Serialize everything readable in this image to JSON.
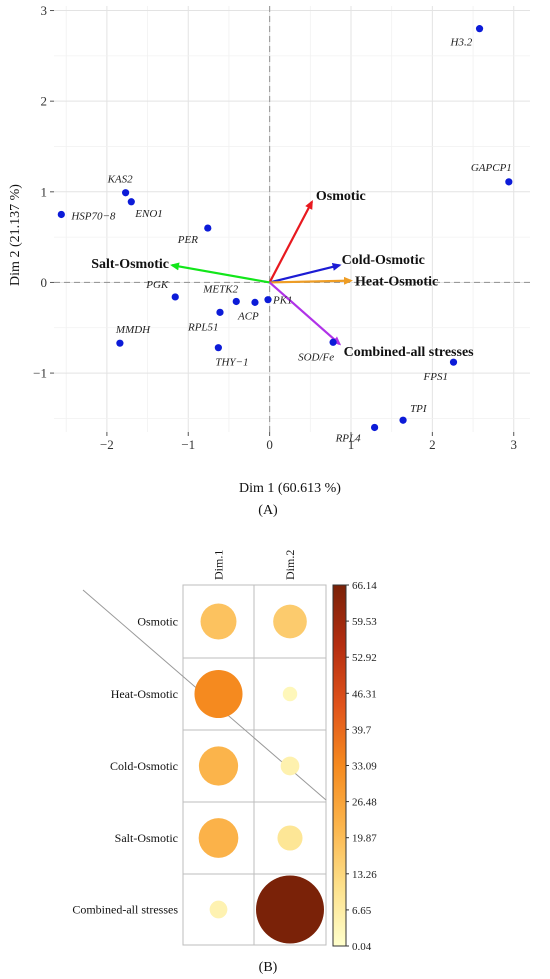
{
  "chart_data": [
    {
      "type": "scatter",
      "panel_label": "(A)",
      "xlabel": "Dim 1 (60.613 %)",
      "ylabel": "Dim 2 (21.137 %)",
      "xlim": [
        -2.65,
        3.2
      ],
      "ylim": [
        -1.65,
        3.05
      ],
      "x_ticks": [
        -2,
        -1,
        0,
        1,
        2,
        3
      ],
      "y_ticks": [
        -1,
        0,
        1,
        2,
        3
      ],
      "grid": true,
      "points": [
        {
          "label": "H3.2",
          "x": 2.58,
          "y": 2.8
        },
        {
          "label": "GAPCP1",
          "x": 2.94,
          "y": 1.11
        },
        {
          "label": "KAS2",
          "x": -1.77,
          "y": 0.99
        },
        {
          "label": "HSP70−8",
          "x": -2.56,
          "y": 0.75
        },
        {
          "label": "ENO1",
          "x": -1.7,
          "y": 0.89
        },
        {
          "label": "PER",
          "x": -0.76,
          "y": 0.6
        },
        {
          "label": "PGK",
          "x": -1.16,
          "y": -0.16
        },
        {
          "label": "METK2",
          "x": -0.41,
          "y": -0.21
        },
        {
          "label": "ACP",
          "x": -0.18,
          "y": -0.22
        },
        {
          "label": "PK1",
          "x": -0.02,
          "y": -0.19
        },
        {
          "label": "RPL51",
          "x": -0.61,
          "y": -0.33
        },
        {
          "label": "MMDH",
          "x": -1.84,
          "y": -0.67
        },
        {
          "label": "THY−1",
          "x": -0.63,
          "y": -0.72
        },
        {
          "label": "SOD/Fe",
          "x": 0.78,
          "y": -0.66
        },
        {
          "label": "FPS1",
          "x": 2.26,
          "y": -0.88
        },
        {
          "label": "TPI",
          "x": 1.64,
          "y": -1.52
        },
        {
          "label": "RPL4",
          "x": 1.29,
          "y": -1.6
        }
      ],
      "vectors": [
        {
          "label": "Osmotic",
          "x": 0.52,
          "y": 0.89,
          "color": "#e8191f"
        },
        {
          "label": "Cold-Osmotic",
          "x": 0.86,
          "y": 0.19,
          "color": "#1c1cd4"
        },
        {
          "label": "Heat-Osmotic",
          "x": 1.0,
          "y": 0.02,
          "color": "#ee9d25"
        },
        {
          "label": "Salt-Osmotic",
          "x": -1.2,
          "y": 0.19,
          "color": "#12e61a"
        },
        {
          "label": "Combined-all stresses",
          "x": 0.86,
          "y": -0.68,
          "color": "#b032e8"
        }
      ],
      "point_color": "#0c1bd8"
    },
    {
      "type": "heatmap",
      "panel_label": "(B)",
      "columns": [
        "Dim.1",
        "Dim.2"
      ],
      "rows": [
        "Osmotic",
        "Heat-Osmotic",
        "Cold-Osmotic",
        "Salt-Osmotic",
        "Combined-all stresses"
      ],
      "values": [
        [
          18.5,
          16.2
        ],
        [
          33.0,
          3.0
        ],
        [
          22.0,
          5.0
        ],
        [
          22.5,
          9.0
        ],
        [
          4.5,
          66.14
        ]
      ],
      "colorbar_ticks": [
        "66.14",
        "59.53",
        "52.92",
        "46.31",
        "39.7",
        "33.09",
        "26.48",
        "19.87",
        "13.26",
        "6.65",
        "0.04"
      ],
      "range": [
        0.04,
        66.14
      ],
      "colors": [
        "#ffffcc",
        "#fde08a",
        "#fbb44b",
        "#f58a1f",
        "#e0531b",
        "#b42d10",
        "#7a2208"
      ]
    }
  ]
}
